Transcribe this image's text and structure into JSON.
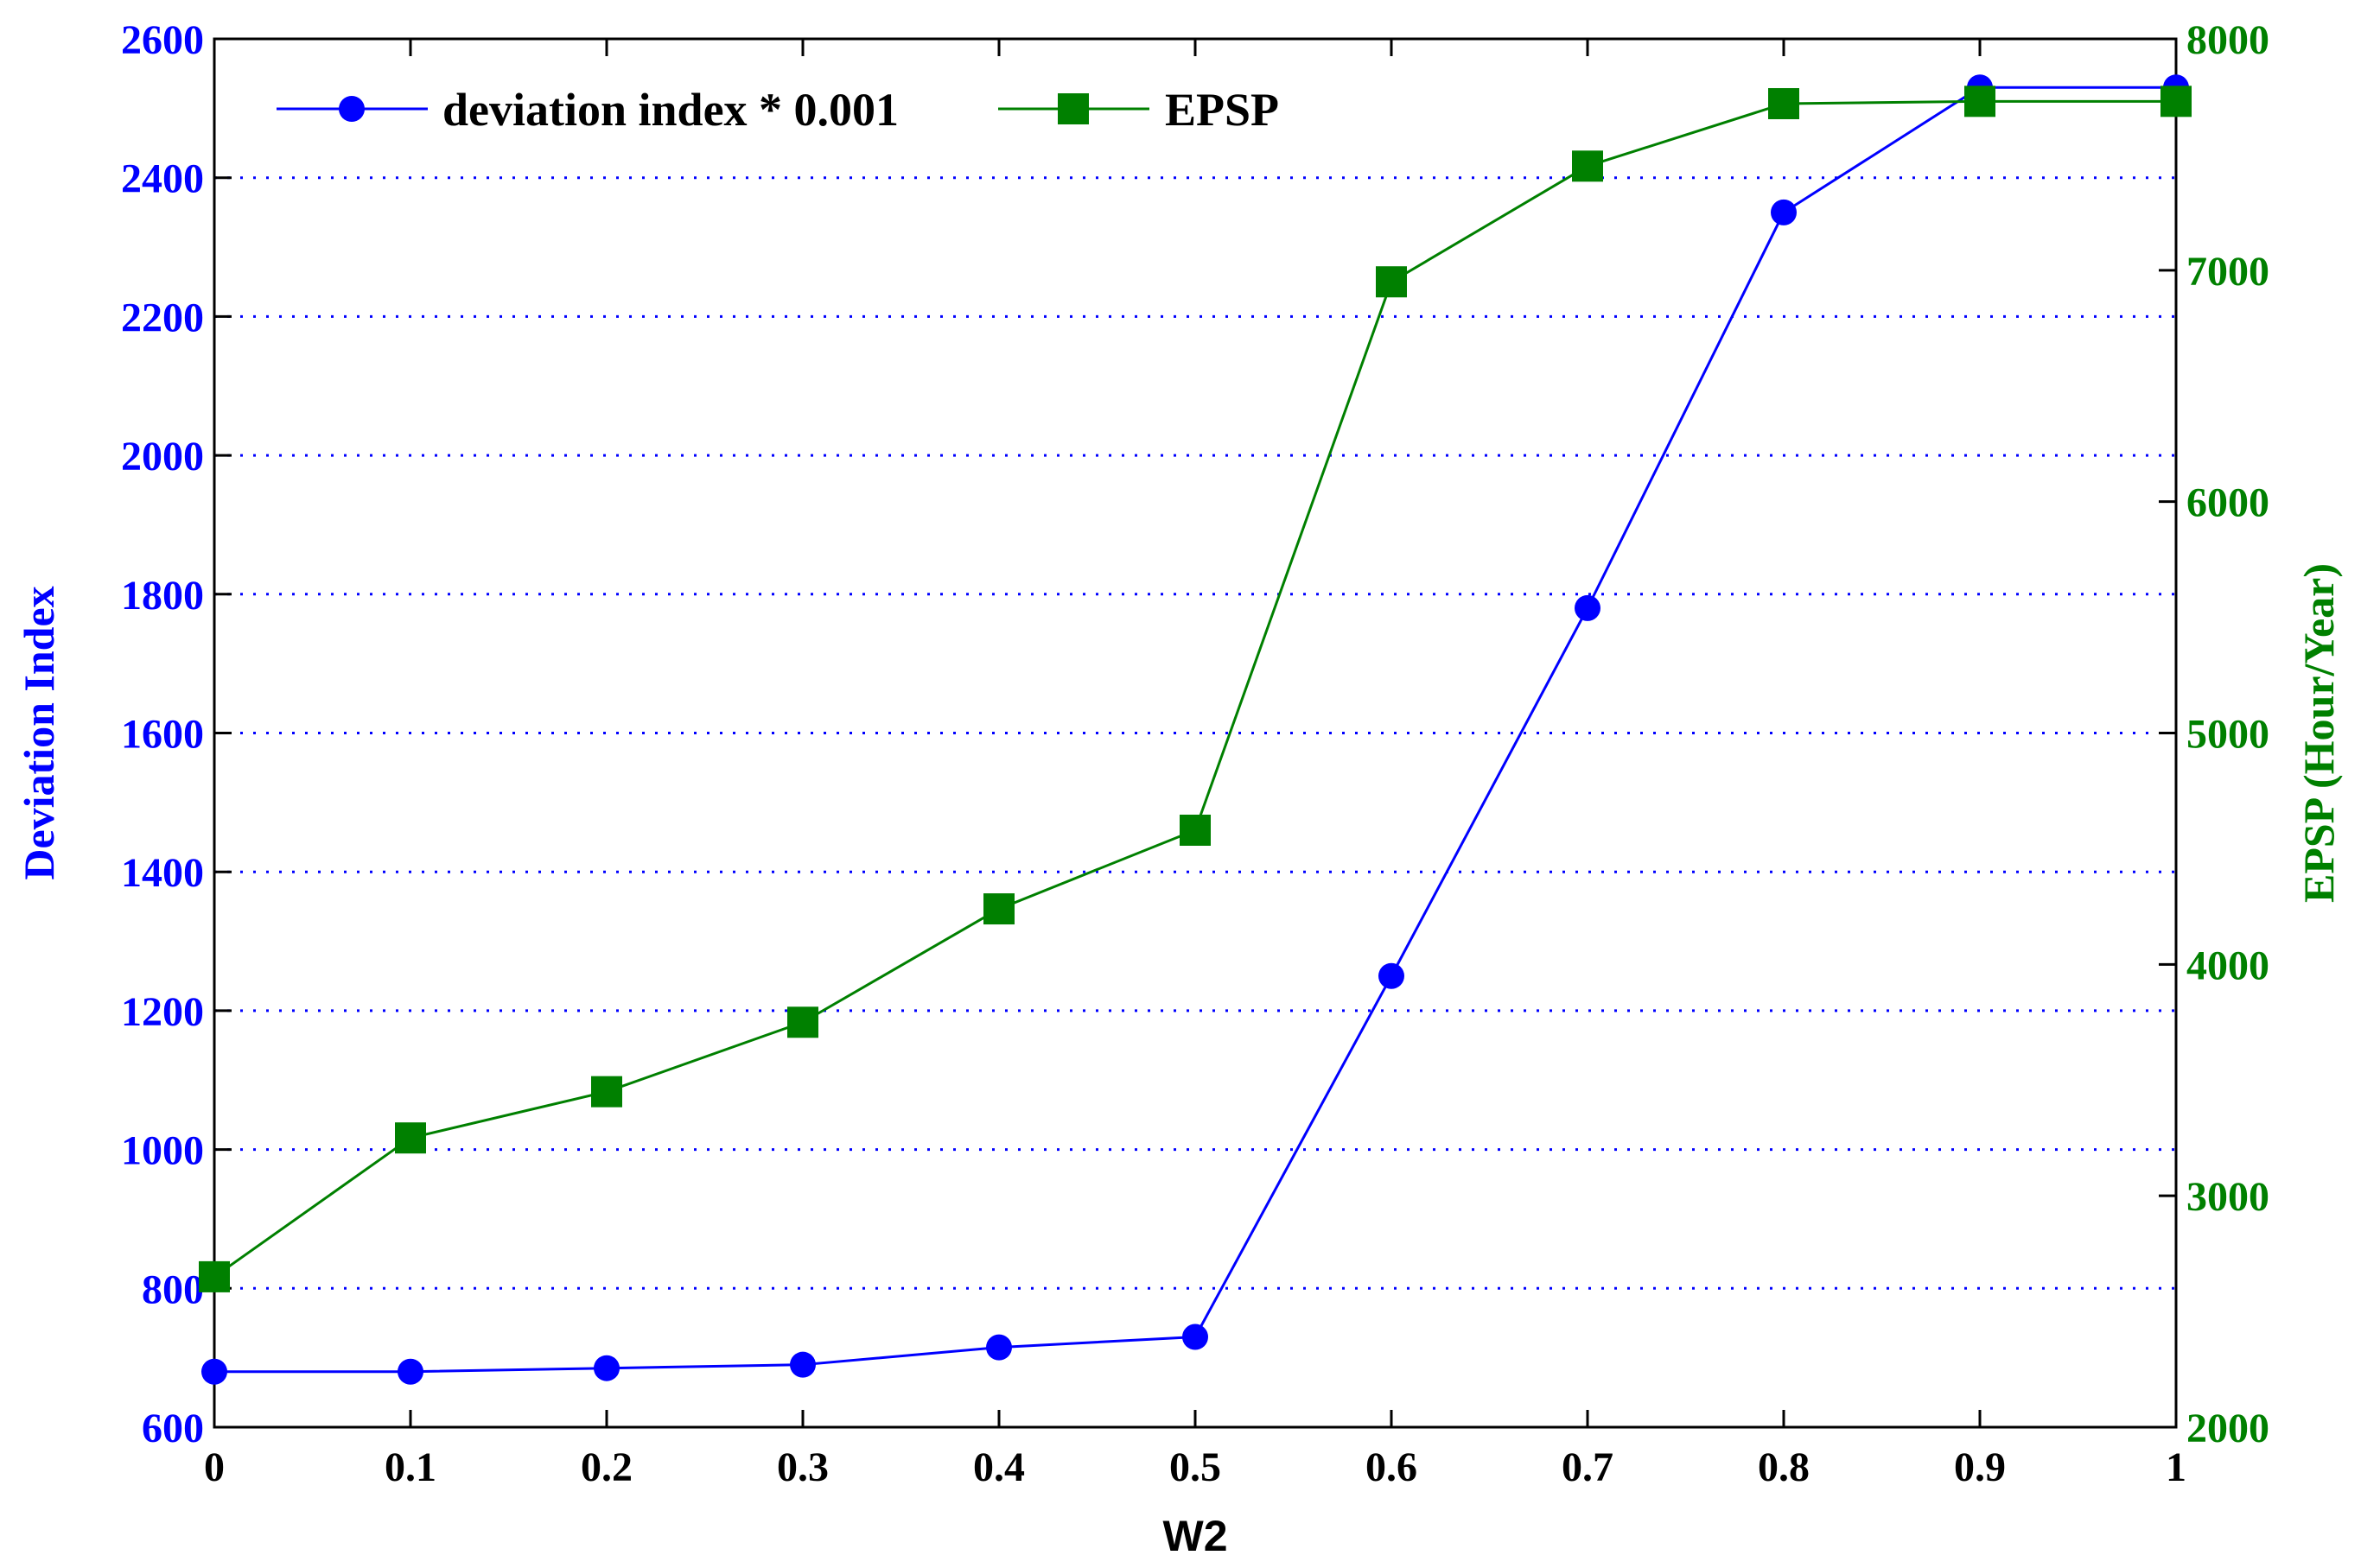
{
  "chart_data": {
    "type": "line",
    "xlabel": "W2",
    "ylabel_left": "Deviation Index",
    "ylabel_right": "EPSP (Hour/Year)",
    "x": [
      0,
      0.1,
      0.2,
      0.3,
      0.4,
      0.5,
      0.6,
      0.7,
      0.8,
      0.9,
      1
    ],
    "x_tick_labels": [
      "0",
      "0.1",
      "0.2",
      "0.3",
      "0.4",
      "0.5",
      "0.6",
      "0.7",
      "0.8",
      "0.9",
      "1"
    ],
    "xlim": [
      0,
      1
    ],
    "ylim_left": [
      600,
      2600
    ],
    "ylim_right": [
      2000,
      8000
    ],
    "y_left_ticks": [
      "600",
      "800",
      "1000",
      "1200",
      "1400",
      "1600",
      "1800",
      "2000",
      "2200",
      "2400",
      "2600"
    ],
    "y_right_ticks": [
      "2000",
      "3000",
      "4000",
      "5000",
      "6000",
      "7000",
      "8000"
    ],
    "grid": "horizontal dotted",
    "legend_position": "top-left",
    "series": [
      {
        "name": "deviation index * 0.001",
        "axis": "left",
        "color": "#0000ff",
        "marker": "circle",
        "values": [
          680,
          680,
          685,
          690,
          715,
          730,
          1250,
          1780,
          2350,
          2530,
          2530
        ]
      },
      {
        "name": "EPSP",
        "axis": "right",
        "color": "#008000",
        "marker": "square",
        "values": [
          2650,
          3250,
          3450,
          3750,
          4240,
          4580,
          6950,
          7450,
          7720,
          7730,
          7730
        ]
      }
    ]
  }
}
